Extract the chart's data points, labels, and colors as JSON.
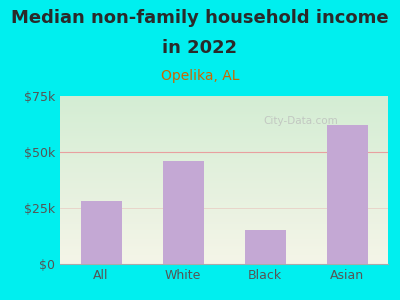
{
  "title_line1": "Median non-family household income",
  "title_line2": "in 2022",
  "subtitle": "Opelika, AL",
  "categories": [
    "All",
    "White",
    "Black",
    "Asian"
  ],
  "values": [
    28000,
    46000,
    15000,
    62000
  ],
  "bar_color": "#c4a8d4",
  "background_color": "#00EFEF",
  "title_color": "#2a2a2a",
  "subtitle_color": "#cc6600",
  "tick_color": "#555555",
  "grid_color": "#e8a0a0",
  "watermark": "City-Data.com",
  "title_fontsize": 13,
  "subtitle_fontsize": 10,
  "tick_fontsize": 9,
  "ylim": [
    0,
    75000
  ],
  "yticks": [
    0,
    25000,
    50000,
    75000
  ],
  "ytick_labels": [
    "$0",
    "$25k",
    "$50k",
    "$75k"
  ]
}
